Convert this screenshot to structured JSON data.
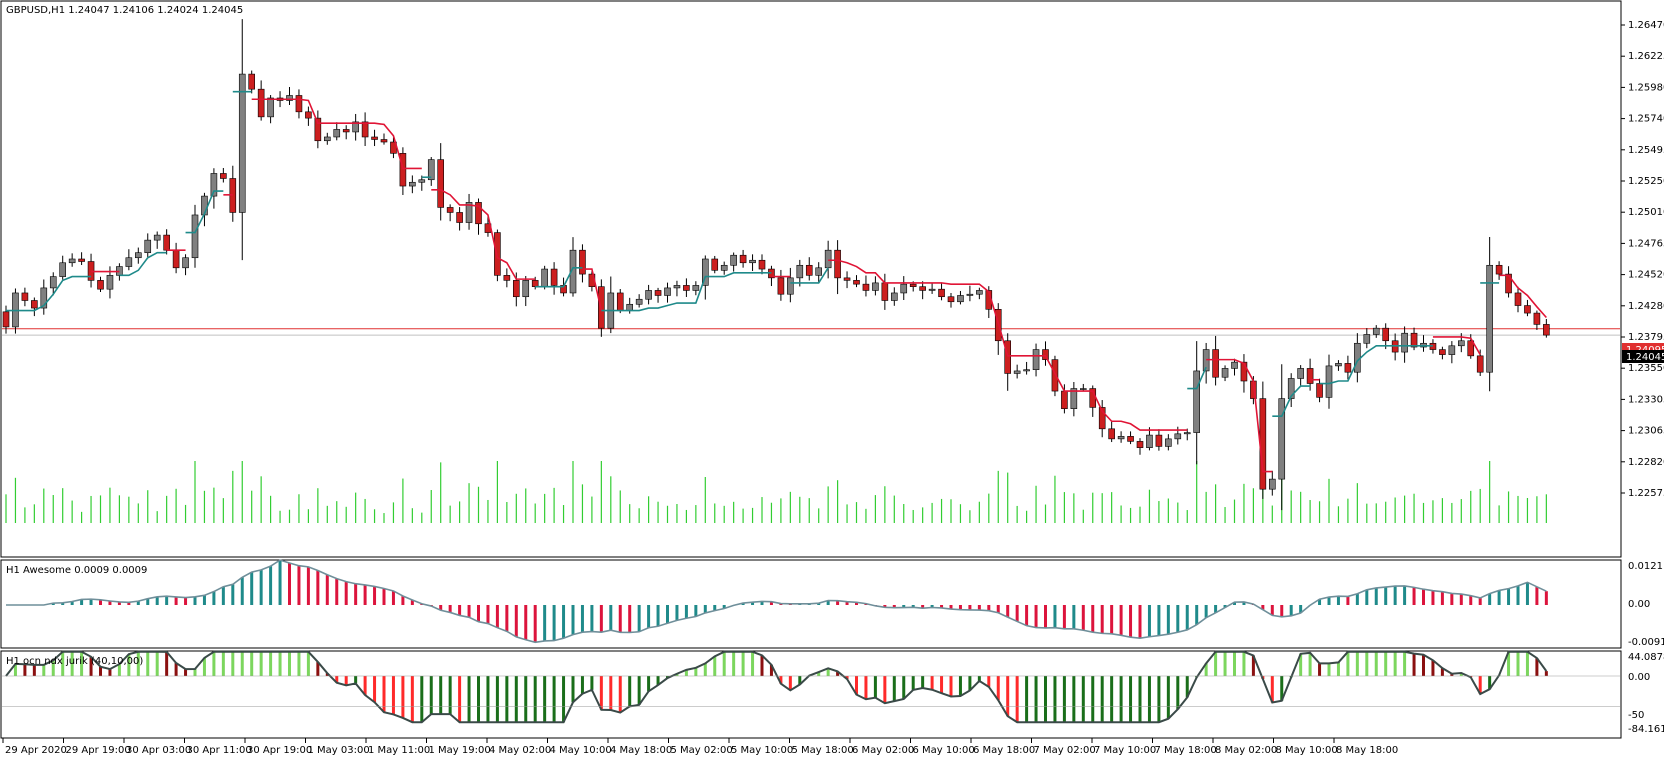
{
  "main_pane": {
    "title": "GBPUSD,H1  1.24047 1.24106 1.24024 1.24045",
    "price_labels": [
      "1.26470",
      "1.26225",
      "1.25980",
      "1.25740",
      "1.25495",
      "1.25250",
      "1.25010",
      "1.24765",
      "1.24520",
      "1.24280",
      "1.23795",
      "1.23550",
      "1.23305",
      "1.23065",
      "1.22820",
      "1.22575"
    ],
    "bid_label": "1.24045",
    "ask_label": "1.24095"
  },
  "ao_pane": {
    "title": "H1  Awesome 0.0009 0.0009",
    "scale_labels": [
      "0.0121",
      "0.00",
      "-0.0091"
    ]
  },
  "jurik_pane": {
    "title": "H1   ocn ndx jurik (40,10,00)",
    "scale_labels": [
      "44.0878",
      "0.00",
      "-50",
      "-84.1618"
    ]
  },
  "time_axis": [
    "29 Apr 2020",
    "29 Apr 19:00",
    "30 Apr 03:00",
    "30 Apr 11:00",
    "30 Apr 19:00",
    "1 May 03:00",
    "1 May 11:00",
    "1 May 19:00",
    "4 May 02:00",
    "4 May 10:00",
    "4 May 18:00",
    "5 May 02:00",
    "5 May 10:00",
    "5 May 18:00",
    "6 May 02:00",
    "6 May 10:00",
    "6 May 18:00",
    "7 May 02:00",
    "7 May 10:00",
    "7 May 18:00",
    "8 May 02:00",
    "8 May 10:00",
    "8 May 18:00"
  ],
  "chart_data": {
    "type": "candlestick",
    "symbol": "GBPUSD",
    "timeframe": "H1",
    "ohlc_last": {
      "open": 1.24047,
      "high": 1.24106,
      "low": 1.24024,
      "close": 1.24045
    },
    "ylim": [
      1.22575,
      1.2655
    ],
    "closes": [
      1.2411,
      1.2438,
      1.2432,
      1.2426,
      1.2442,
      1.2451,
      1.2462,
      1.2465,
      1.2463,
      1.2448,
      1.2441,
      1.2452,
      1.2459,
      1.2466,
      1.247,
      1.248,
      1.2484,
      1.2472,
      1.2458,
      1.2466,
      1.25,
      1.2515,
      1.2533,
      1.2529,
      1.2502,
      1.2612,
      1.26,
      1.2578,
      1.2593,
      1.2591,
      1.2595,
      1.2582,
      1.2577,
      1.2559,
      1.2562,
      1.2568,
      1.2566,
      1.2574,
      1.2562,
      1.256,
      1.2558,
      1.2549,
      1.2523,
      1.2526,
      1.2528,
      1.2544,
      1.2506,
      1.2502,
      1.2494,
      1.251,
      1.2493,
      1.2486,
      1.2452,
      1.2448,
      1.2435,
      1.2448,
      1.2443,
      1.2457,
      1.2444,
      1.2438,
      1.2472,
      1.2453,
      1.2443,
      1.241,
      1.2438,
      1.2424,
      1.2429,
      1.2433,
      1.244,
      1.2436,
      1.2442,
      1.2444,
      1.244,
      1.2444,
      1.2465,
      1.2456,
      1.246,
      1.2468,
      1.2462,
      1.2464,
      1.2457,
      1.245,
      1.2437,
      1.245,
      1.246,
      1.2452,
      1.2458,
      1.2472,
      1.245,
      1.2448,
      1.2445,
      1.244,
      1.2446,
      1.2432,
      1.2438,
      1.2445,
      1.2443,
      1.244,
      1.2441,
      1.2435,
      1.2431,
      1.2436,
      1.2437,
      1.244,
      1.2425,
      1.24,
      1.2374,
      1.2376,
      1.2377,
      1.2393,
      1.2385,
      1.236,
      1.2346,
      1.2362,
      1.2362,
      1.2347,
      1.233,
      1.2322,
      1.2324,
      1.232,
      1.2315,
      1.2325,
      1.2316,
      1.2322,
      1.2326,
      1.2327,
      1.2376,
      1.2393,
      1.2371,
      1.2378,
      1.2383,
      1.2368,
      1.2354,
      1.2282,
      1.229,
      1.2354,
      1.237,
      1.2378,
      1.2366,
      1.2355,
      1.238,
      1.2382,
      1.2375,
      1.2398,
      1.2405,
      1.241,
      1.24,
      1.2391,
      1.2406,
      1.2395,
      1.2398,
      1.2393,
      1.2389,
      1.2396,
      1.24,
      1.2388,
      1.2375,
      1.246,
      1.2453,
      1.2438,
      1.2428,
      1.2422,
      1.2413,
      1.24045
    ]
  },
  "colors": {
    "bull_candle": "#808080",
    "bear_candle": "#cc1f1f",
    "trend_up": "#1f8a8a",
    "trend_down": "#e01435",
    "volume": "#32cd32",
    "ao_up": "#1f8a8a",
    "ao_down": "#dc143c",
    "jurik_up_strong": "#7cd65e",
    "jurik_up_weak": "#1a6e1a",
    "jurik_down_strong": "#ff2a2a",
    "jurik_down_weak": "#8b1010",
    "bid_line": "#c0c0c0",
    "ask_line": "#e03030"
  }
}
